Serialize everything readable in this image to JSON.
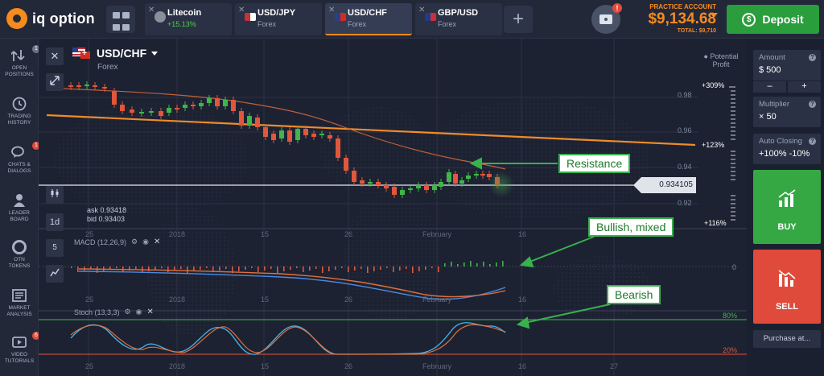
{
  "header": {
    "logo_text": "iq option",
    "tabs": [
      {
        "name": "Litecoin",
        "sub": "+15.13%",
        "sub_color": "#4bd04b",
        "close": "✕"
      },
      {
        "name": "USD/JPY",
        "sub": "Forex",
        "close": "✕"
      },
      {
        "name": "USD/CHF",
        "sub": "Forex",
        "close": "✕",
        "active": true
      },
      {
        "name": "GBP/USD",
        "sub": "Forex",
        "close": "✕"
      }
    ],
    "add_tab": "+",
    "camera_badge": "!",
    "account_label": "PRACTICE ACCOUNT",
    "balance": "$9,134.68",
    "total": "TOTAL: $9,710",
    "deposit_label": "Deposit",
    "deposit_icon": "$"
  },
  "sidebar": [
    {
      "label1": "OPEN",
      "label2": "POSITIONS",
      "badge": "1",
      "icon": "positions-icon"
    },
    {
      "label1": "TRADING",
      "label2": "HISTORY",
      "icon": "history-icon"
    },
    {
      "label1": "CHATS &",
      "label2": "DIALOGS",
      "badge": "1",
      "icon": "chat-icon"
    },
    {
      "label1": "LEADER",
      "label2": "BOARD",
      "icon": "leader-icon"
    },
    {
      "label1": "OTN",
      "label2": "TOKENS",
      "icon": "token-icon"
    },
    {
      "label1": "MARKET",
      "label2": "ANALYSIS",
      "icon": "analysis-icon"
    },
    {
      "label1": "VIDEO",
      "label2": "TUTORIALS",
      "badge": "6",
      "icon": "video-icon"
    }
  ],
  "chart": {
    "pair": "USD/CHF",
    "type": "Forex",
    "ask": "ask 0.93418",
    "bid": "bid 0.93403",
    "current_price": "0.934105",
    "timeframe": "1d",
    "tool_5": "5",
    "close_x": "✕",
    "y_ticks": [
      "0.98",
      "0.96",
      "0.94",
      "0.92"
    ],
    "x_ticks": [
      "25",
      "2018",
      "15",
      "26",
      "February",
      "16"
    ],
    "x_ticks_bottom": [
      "25",
      "2018",
      "15",
      "26",
      "February",
      "16",
      "27"
    ],
    "macd_label": "MACD (12,26,9)",
    "macd_zero": "0",
    "stoch_label": "Stoch (13,3,3)",
    "stoch_80": "80%",
    "stoch_20": "20%",
    "potential_label": "Potential Profit",
    "pct_top": "+309%",
    "pct_mid": "+123%",
    "pct_bot": "+116%",
    "callouts": {
      "resistance": "Resistance",
      "bullish": "Bullish, mixed",
      "bearish": "Bearish"
    }
  },
  "right_panel": {
    "amount_title": "Amount",
    "amount_value": "$ 500",
    "minus": "–",
    "plus": "+",
    "multiplier_title": "Multiplier",
    "multiplier_value": "× 50",
    "autoclose_title": "Auto Closing",
    "autoclose_value": "+100% -10%",
    "buy_label": "BUY",
    "sell_label": "SELL",
    "purchase_label": "Purchase at..."
  }
}
